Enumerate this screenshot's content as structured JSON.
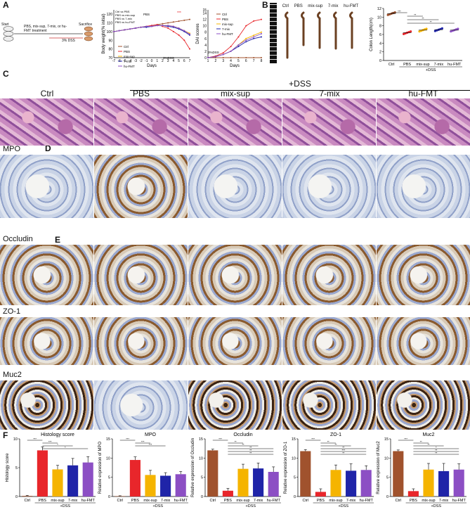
{
  "panels": {
    "a": "A",
    "b": "B",
    "c": "C",
    "d": "D",
    "e": "E",
    "f": "F"
  },
  "schematic": {
    "start": "Start",
    "treatment": "PBS, mix-sup, 7-mix, or hu-FMT treatment",
    "dss": "3% DSS",
    "sacrifice": "Sacrifice"
  },
  "weight_chart": {
    "ylabel": "Body weight(% initial)",
    "xlabel": "Days",
    "xticks": [
      "-7",
      "-6",
      "-5",
      "-4",
      "-3",
      "-2",
      "-1",
      "0",
      "1",
      "2",
      "3",
      "4",
      "5",
      "6",
      "7"
    ],
    "yticks": [
      "70",
      "80",
      "90",
      "100",
      "110",
      "120"
    ],
    "pbs_mark": "PBS",
    "dss_mark": "3%DSS",
    "stars": "***",
    "comparisons": [
      "Ctrl vs PBS",
      "PBS vs mix-sup",
      "PBS vs 7-mix",
      "PBS vs hu-FMT"
    ],
    "legend": [
      "Ctrl",
      "PBS",
      "mix-sup",
      "7-mix",
      "hu-FMT"
    ]
  },
  "dai_chart": {
    "ylabel": "DAI scores",
    "xlabel": "Days",
    "xticks": [
      "1",
      "2",
      "3",
      "4",
      "5",
      "6",
      "7",
      "8"
    ],
    "yticks": [
      "0",
      "2",
      "4",
      "6",
      "8",
      "10",
      "12",
      "14",
      "15"
    ],
    "dss_mark": "3%DSS",
    "legend": [
      "Ctrl",
      "PBS",
      "mix-sup",
      "7-mix",
      "hu-FMT"
    ]
  },
  "colon_photo": {
    "labels": [
      "Ctrl",
      "PBS",
      "mix-sup",
      "7-mix",
      "hu-FMT"
    ]
  },
  "colon_chart": {
    "ylabel": "Colon Length(cm)",
    "yticks": [
      "0",
      "2",
      "4",
      "6",
      "8",
      "10",
      "12"
    ],
    "categories": [
      "Ctrl",
      "PBS",
      "mix-sup",
      "7-mix",
      "hu-FMT"
    ],
    "values": [
      10.8,
      6.4,
      7.0,
      7.1,
      7.0
    ],
    "sig": [
      "***",
      "**",
      "**",
      "**"
    ],
    "group": "+DSS"
  },
  "histo": {
    "dss_group": "+DSS",
    "columns": [
      "Ctrl",
      "PBS",
      "mix-sup",
      "7-mix",
      "hu-FMT"
    ],
    "rows": [
      "MPO",
      "Occludin",
      "ZO-1",
      "Muc2"
    ]
  },
  "colors": {
    "ctrl": "#a0522d",
    "pbs": "#e8262b",
    "mixsup": "#f5b400",
    "sevenmix": "#1f24a8",
    "hufmt": "#8c4fc4"
  },
  "chart_data": [
    {
      "type": "bar",
      "title": "Histology score",
      "ylabel": "Histology score",
      "ylim": [
        0,
        10
      ],
      "yticks": [
        "0",
        "5",
        "10"
      ],
      "categories": [
        "Ctrl",
        "PBS",
        "mix-sup",
        "7-mix",
        "hu-FMT"
      ],
      "values": [
        0.1,
        8.0,
        4.7,
        5.4,
        5.9
      ],
      "errors": [
        0.1,
        0.6,
        0.7,
        1.2,
        1.0
      ],
      "sig": [
        "***",
        "***",
        "*",
        "*"
      ],
      "group": "+DSS"
    },
    {
      "type": "bar",
      "title": "MPO",
      "ylabel": "Relative expression of MPO",
      "ylim": [
        0,
        15
      ],
      "yticks": [
        "0",
        "5",
        "10",
        "15"
      ],
      "categories": [
        "Ctrl",
        "PBS",
        "mix-sup",
        "7-mix",
        "hu-FMT"
      ],
      "values": [
        0.1,
        9.5,
        5.6,
        5.4,
        5.8
      ],
      "errors": [
        0.1,
        0.8,
        1.2,
        0.8,
        0.7
      ],
      "sig": [
        "***",
        "***",
        "***"
      ],
      "group": "+DSS"
    },
    {
      "type": "bar",
      "title": "Occludin",
      "ylabel": "Relative expression of Occludin",
      "ylim": [
        0,
        15
      ],
      "yticks": [
        "0",
        "5",
        "10",
        "15"
      ],
      "categories": [
        "Ctrl",
        "PBS",
        "mix-sup",
        "7-mix",
        "hu-FMT"
      ],
      "values": [
        12.0,
        1.5,
        7.2,
        7.3,
        6.4
      ],
      "errors": [
        0.3,
        0.6,
        1.2,
        1.4,
        1.3
      ],
      "sig": [
        "***",
        "**",
        "**",
        "**",
        "**",
        "**"
      ],
      "group": "+DSS"
    },
    {
      "type": "bar",
      "title": "ZO-1",
      "ylabel": "Relative expression of ZO-1",
      "ylim": [
        0,
        15
      ],
      "yticks": [
        "0",
        "5",
        "10",
        "15"
      ],
      "categories": [
        "Ctrl",
        "PBS",
        "mix-sup",
        "7-mix",
        "hu-FMT"
      ],
      "values": [
        11.8,
        1.2,
        6.9,
        6.7,
        6.9
      ],
      "errors": [
        0.4,
        0.8,
        1.3,
        1.8,
        1.1
      ],
      "sig": [
        "***",
        "**",
        "**",
        "**",
        "***",
        "**"
      ],
      "group": "+DSS"
    },
    {
      "type": "bar",
      "title": "Muc2",
      "ylabel": "Relative expression of Muc2",
      "ylim": [
        0,
        15
      ],
      "yticks": [
        "0",
        "5",
        "10",
        "15"
      ],
      "categories": [
        "Ctrl",
        "PBS",
        "mix-sup",
        "7-mix",
        "hu-FMT"
      ],
      "values": [
        11.8,
        1.4,
        7.0,
        6.6,
        7.0
      ],
      "errors": [
        0.3,
        0.6,
        1.6,
        2.0,
        1.5
      ],
      "sig": [
        "***",
        "**",
        "**",
        "*",
        "**",
        "**"
      ],
      "group": "+DSS"
    },
    {
      "type": "line",
      "title": "",
      "xlabel": "Days",
      "ylabel": "Body weight(% initial)",
      "x": [
        -7,
        -6,
        -5,
        -4,
        -3,
        -2,
        -1,
        0,
        1,
        2,
        3,
        4,
        5,
        6,
        7
      ],
      "ylim": [
        70,
        125
      ],
      "series": [
        {
          "name": "Ctrl",
          "values": [
            100,
            101,
            102,
            103,
            104,
            105,
            106,
            107,
            108,
            109,
            110,
            111,
            112,
            113,
            114
          ]
        },
        {
          "name": "PBS",
          "values": [
            100,
            101,
            102,
            103,
            104,
            105,
            106,
            107,
            108,
            106,
            104,
            100,
            96,
            90,
            80
          ]
        },
        {
          "name": "mix-sup",
          "values": [
            100,
            101,
            102,
            103,
            104,
            105,
            106,
            106,
            107,
            107,
            107,
            106,
            104,
            101,
            98
          ]
        },
        {
          "name": "7-mix",
          "values": [
            100,
            101,
            102,
            103,
            104,
            105,
            105,
            106,
            107,
            107,
            106,
            105,
            103,
            100,
            96
          ]
        },
        {
          "name": "hu-FMT",
          "values": [
            100,
            101,
            102,
            103,
            104,
            105,
            106,
            106,
            107,
            107,
            107,
            106,
            104,
            101,
            97
          ]
        }
      ]
    },
    {
      "type": "line",
      "title": "",
      "xlabel": "Days",
      "ylabel": "DAI scores",
      "x": [
        1,
        2,
        3,
        4,
        5,
        6,
        7,
        8
      ],
      "ylim": [
        0,
        15
      ],
      "series": [
        {
          "name": "Ctrl",
          "values": [
            0,
            0,
            0,
            0,
            0,
            0,
            0,
            0
          ]
        },
        {
          "name": "PBS",
          "values": [
            0,
            0.5,
            1.5,
            3.5,
            6.5,
            10,
            11.5,
            12
          ]
        },
        {
          "name": "mix-sup",
          "values": [
            0,
            0.3,
            1,
            2,
            4,
            6,
            7,
            8
          ]
        },
        {
          "name": "7-mix",
          "values": [
            0,
            0.3,
            1,
            2,
            3.5,
            5,
            6,
            6.5
          ]
        },
        {
          "name": "hu-FMT",
          "values": [
            0,
            0.3,
            1,
            2,
            4,
            5.5,
            6.5,
            7.5
          ]
        }
      ]
    }
  ]
}
